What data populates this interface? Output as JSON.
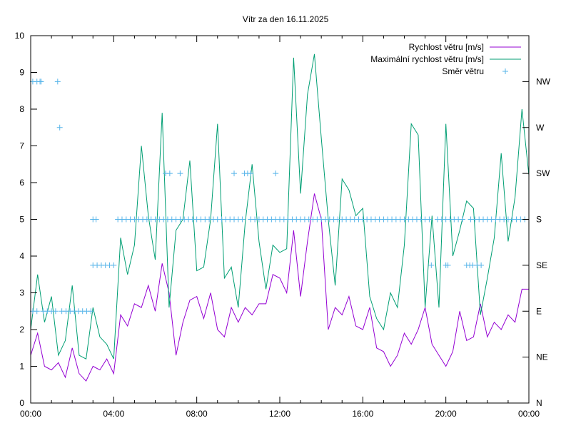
{
  "chart_data": {
    "type": "line",
    "title": "Vítr za den 16.11.2025",
    "xlabel": "",
    "ylabel": "",
    "xlim": [
      0,
      24
    ],
    "ylim": [
      0,
      10
    ],
    "y2lim": [
      0,
      10
    ],
    "grid": false,
    "legend_position": "top-right",
    "x_ticks": [
      0,
      4,
      8,
      12,
      16,
      20,
      24
    ],
    "x_tick_labels": [
      "00:00",
      "04:00",
      "08:00",
      "12:00",
      "16:00",
      "20:00",
      "00:00"
    ],
    "y_ticks": [
      0,
      1,
      2,
      3,
      4,
      5,
      6,
      7,
      8,
      9,
      10
    ],
    "y_tick_labels": [
      "0",
      "1",
      "2",
      "3",
      "4",
      "5",
      "6",
      "7",
      "8",
      "9",
      "10"
    ],
    "y2_ticks": [
      0,
      1.25,
      2.5,
      3.75,
      5,
      6.25,
      7.5,
      8.75
    ],
    "y2_tick_labels": [
      "N",
      "NE",
      "E",
      "SE",
      "S",
      "SW",
      "W",
      "NW"
    ],
    "x_hours": [
      0,
      0.333,
      0.667,
      1,
      1.333,
      1.667,
      2,
      2.333,
      2.667,
      3,
      3.333,
      3.667,
      4,
      4.333,
      4.667,
      5,
      5.333,
      5.667,
      6,
      6.333,
      6.667,
      7,
      7.333,
      7.667,
      8,
      8.333,
      8.667,
      9,
      9.333,
      9.667,
      10,
      10.333,
      10.667,
      11,
      11.333,
      11.667,
      12,
      12.333,
      12.667,
      13,
      13.333,
      13.667,
      14,
      14.333,
      14.667,
      15,
      15.333,
      15.667,
      16,
      16.333,
      16.667,
      17,
      17.333,
      17.667,
      18,
      18.333,
      18.667,
      19,
      19.333,
      19.667,
      20,
      20.333,
      20.667,
      21,
      21.333,
      21.667,
      22,
      22.333,
      22.667,
      23,
      23.333,
      23.667,
      24
    ],
    "series": [
      {
        "name": "Rychlost větru [m/s]",
        "color": "#9400d3",
        "style": "line",
        "values": [
          1.3,
          1.9,
          1.0,
          0.9,
          1.1,
          0.7,
          1.5,
          0.8,
          0.6,
          1.0,
          0.9,
          1.2,
          0.8,
          2.4,
          2.1,
          2.7,
          2.6,
          3.2,
          2.5,
          3.8,
          3.0,
          1.3,
          2.2,
          2.8,
          2.9,
          2.3,
          3.0,
          2.0,
          1.8,
          2.6,
          2.2,
          2.6,
          2.4,
          2.7,
          2.7,
          3.5,
          3.4,
          3.0,
          4.7,
          2.9,
          4.4,
          5.7,
          5.0,
          2.0,
          2.6,
          2.4,
          2.9,
          2.1,
          2.0,
          2.6,
          1.5,
          1.4,
          1.0,
          1.3,
          1.9,
          1.6,
          2.0,
          2.6,
          1.6,
          1.3,
          1.0,
          1.4,
          2.5,
          1.7,
          1.8,
          2.7,
          1.8,
          2.2,
          2.0,
          2.4,
          2.2,
          3.1,
          3.1
        ]
      },
      {
        "name": "Maximální rychlost větru [m/s]",
        "color": "#009e73",
        "style": "line",
        "values": [
          2.0,
          3.5,
          2.2,
          2.9,
          1.3,
          1.7,
          3.2,
          1.3,
          1.2,
          2.6,
          1.8,
          1.6,
          1.2,
          4.5,
          3.5,
          4.3,
          7.0,
          5.1,
          3.9,
          7.9,
          2.6,
          4.7,
          5.0,
          6.6,
          3.6,
          3.7,
          5.0,
          7.6,
          3.4,
          3.7,
          2.6,
          4.9,
          6.5,
          4.4,
          3.1,
          4.3,
          4.1,
          4.2,
          9.4,
          5.7,
          8.4,
          9.5,
          7.2,
          5.0,
          3.2,
          6.1,
          5.8,
          5.1,
          5.3,
          2.9,
          2.3,
          2.0,
          3.0,
          2.6,
          4.3,
          7.6,
          7.3,
          2.6,
          5.1,
          2.6,
          7.6,
          4.0,
          4.7,
          5.5,
          5.3,
          2.4,
          3.4,
          4.5,
          6.8,
          4.4,
          5.6,
          8.0,
          6.2
        ]
      },
      {
        "name": "Směr větru",
        "color": "#56b4e9",
        "style": "points",
        "x": [
          0.1,
          0.3,
          0.45,
          0.5,
          1.3,
          1.4,
          0.1,
          0.3,
          0.6,
          0.8,
          1.0,
          1.2,
          1.5,
          1.7,
          1.9,
          2.1,
          2.3,
          2.5,
          2.7,
          2.9,
          3.0,
          3.2,
          3.4,
          3.6,
          3.8,
          4.0,
          3.0,
          3.15,
          4.2,
          4.4,
          4.6,
          4.8,
          5.0,
          5.2,
          5.4,
          5.6,
          5.8,
          6.0,
          6.2,
          6.4,
          6.6,
          6.8,
          7.0,
          7.2,
          7.4,
          7.6,
          7.8,
          8.0,
          8.2,
          8.4,
          8.6,
          8.8,
          9.0,
          9.2,
          9.4,
          9.6,
          9.8,
          10.0,
          10.2,
          10.6,
          10.8,
          11.0,
          11.2,
          11.4,
          11.6,
          11.8,
          12.0,
          12.2,
          12.4,
          12.6,
          12.8,
          13.0,
          13.2,
          13.4,
          13.6,
          13.8,
          14.0,
          14.2,
          14.4,
          14.6,
          14.8,
          15.0,
          15.2,
          15.4,
          15.6,
          15.8,
          16.0,
          16.2,
          16.4,
          16.6,
          16.8,
          17.0,
          17.2,
          17.4,
          17.6,
          17.8,
          18.0,
          18.2,
          18.4,
          18.6,
          18.8,
          19.0,
          19.2,
          19.6,
          19.8,
          20.0,
          20.2,
          20.4,
          20.6,
          20.8,
          21.2,
          21.4,
          21.6,
          21.8,
          22.0,
          22.2,
          22.4,
          22.6,
          22.8,
          23.0,
          23.2,
          23.4,
          23.6,
          23.8,
          6.5,
          6.7,
          7.2,
          9.8,
          10.3,
          10.45,
          10.6,
          11.8,
          19.3,
          20.0,
          20.1,
          21.0,
          21.15,
          21.3,
          21.5,
          21.7
        ],
        "values": [
          8.75,
          8.75,
          8.75,
          8.75,
          8.75,
          7.5,
          2.5,
          2.5,
          2.5,
          2.5,
          2.5,
          2.5,
          2.5,
          2.5,
          2.5,
          2.5,
          2.5,
          2.5,
          2.5,
          2.5,
          3.75,
          3.75,
          3.75,
          3.75,
          3.75,
          3.75,
          5,
          5,
          5,
          5,
          5,
          5,
          5,
          5,
          5,
          5,
          5,
          5,
          5,
          5,
          5,
          5,
          5,
          5,
          5,
          5,
          5,
          5,
          5,
          5,
          5,
          5,
          5,
          5,
          5,
          5,
          5,
          5,
          5,
          5,
          5,
          5,
          5,
          5,
          5,
          5,
          5,
          5,
          5,
          5,
          5,
          5,
          5,
          5,
          5,
          5,
          5,
          5,
          5,
          5,
          5,
          5,
          5,
          5,
          5,
          5,
          5,
          5,
          5,
          5,
          5,
          5,
          5,
          5,
          5,
          5,
          5,
          5,
          5,
          5,
          5,
          5,
          5,
          5,
          5,
          5,
          5,
          5,
          5,
          5,
          5,
          5,
          5,
          5,
          5,
          5,
          5,
          5,
          5,
          5,
          5,
          5,
          5,
          5,
          6.25,
          6.25,
          6.25,
          6.25,
          6.25,
          6.25,
          6.25,
          6.25,
          3.75,
          3.75,
          3.75,
          3.75,
          3.75,
          3.75,
          3.75,
          3.75
        ]
      }
    ]
  }
}
